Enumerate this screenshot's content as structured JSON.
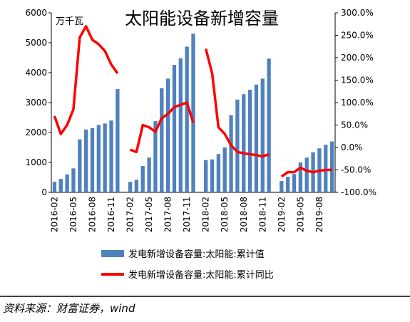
{
  "chart_data": {
    "type": "bar_line",
    "title": "太阳能设备新增容量",
    "unit_label": "万千瓦",
    "source": "资料来源：财富证券，wind",
    "categories": [
      "2016-02",
      null,
      null,
      "2016-05",
      null,
      null,
      "2016-08",
      null,
      null,
      "2016-11",
      null,
      null,
      "2017-02",
      null,
      null,
      "2017-05",
      null,
      null,
      "2017-08",
      null,
      null,
      "2017-11",
      null,
      null,
      "2018-02",
      null,
      null,
      "2018-05",
      null,
      null,
      "2018-08",
      null,
      null,
      "2018-11",
      null,
      null,
      "2019-02",
      null,
      null,
      "2019-05",
      null,
      null,
      "2019-08",
      null,
      null
    ],
    "series": [
      {
        "name": "发电新增设备容量:太阳能:累计值",
        "color": "#4f81bd",
        "axis": "y",
        "values": [
          350,
          450,
          600,
          800,
          1770,
          2100,
          2150,
          2250,
          2300,
          2400,
          3450,
          null,
          350,
          420,
          880,
          1160,
          2380,
          3480,
          3800,
          4260,
          4480,
          4870,
          5300,
          null,
          1080,
          1100,
          1280,
          1500,
          2580,
          3100,
          3280,
          3430,
          3600,
          3800,
          4470,
          null,
          380,
          520,
          610,
          1000,
          1160,
          1340,
          1470,
          1590,
          1700
        ]
      },
      {
        "name": "发电新增设备容量:太阳能:累计同比",
        "color": "#ff0000",
        "axis": "y2",
        "values": [
          70,
          30,
          50,
          85,
          245,
          270,
          240,
          230,
          215,
          185,
          165,
          null,
          -5,
          -10,
          50,
          45,
          35,
          65,
          75,
          90,
          95,
          100,
          55,
          null,
          220,
          165,
          45,
          30,
          5,
          -10,
          -13,
          -15,
          -17,
          -20,
          -15,
          null,
          -65,
          -55,
          -55,
          -45,
          -52,
          -55,
          -52,
          -50,
          -50
        ]
      }
    ],
    "ylim": [
      0,
      6000
    ],
    "yticks": [
      0,
      1000,
      2000,
      3000,
      4000,
      5000,
      6000
    ],
    "y2lim": [
      -100,
      300
    ],
    "y2ticks": [
      {
        "value": -100,
        "label": "-100.0%"
      },
      {
        "value": -50,
        "label": "-50.0%"
      },
      {
        "value": 0,
        "label": "0.0%"
      },
      {
        "value": 50,
        "label": "50.0%"
      },
      {
        "value": 100,
        "label": "100.0%"
      },
      {
        "value": 150,
        "label": "150.0%"
      },
      {
        "value": 200,
        "label": "200.0%"
      },
      {
        "value": 250,
        "label": "250.0%"
      },
      {
        "value": 300,
        "label": "300.0%"
      }
    ]
  }
}
